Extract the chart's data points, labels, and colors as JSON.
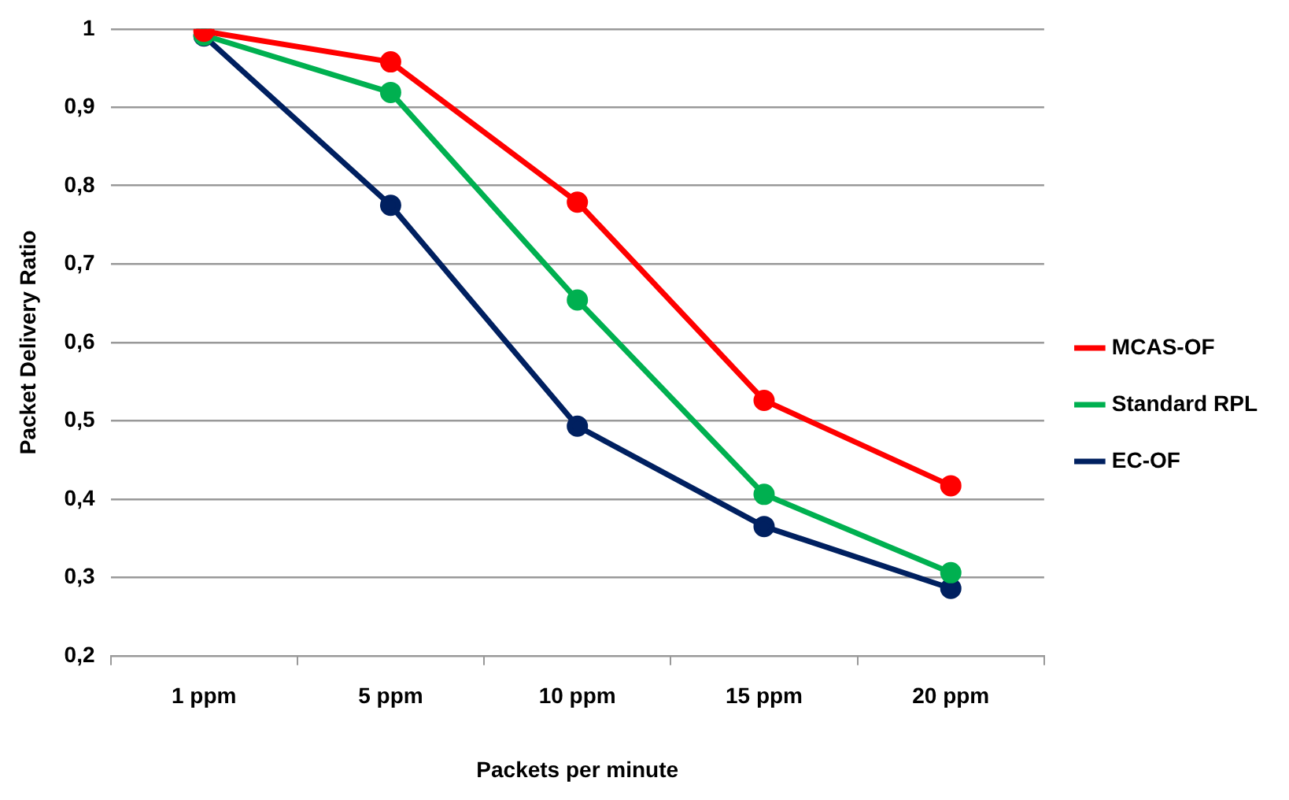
{
  "chart_data": {
    "type": "line",
    "xlabel": "Packets per minute",
    "ylabel": "Packet Delivery Ratio",
    "categories": [
      "1 ppm",
      "5 ppm",
      "10 ppm",
      "15 ppm",
      "20 ppm"
    ],
    "ylim": [
      0.2,
      1
    ],
    "yticks": [
      {
        "value": 0.2,
        "label": "0,2"
      },
      {
        "value": 0.3,
        "label": "0,3"
      },
      {
        "value": 0.4,
        "label": "0,4"
      },
      {
        "value": 0.5,
        "label": "0,5"
      },
      {
        "value": 0.6,
        "label": "0,6"
      },
      {
        "value": 0.7,
        "label": "0,7"
      },
      {
        "value": 0.8,
        "label": "0,8"
      },
      {
        "value": 0.9,
        "label": "0,9"
      },
      {
        "value": 1,
        "label": "1"
      }
    ],
    "grid": "y",
    "legend": "right",
    "marker": "circle",
    "line_style": "solid",
    "series": [
      {
        "name": "MCAS-OF",
        "color": "#ff0000",
        "values": [
          0.997,
          0.958,
          0.779,
          0.526,
          0.417
        ]
      },
      {
        "name": "Standard RPL",
        "color": "#00b050",
        "values": [
          0.992,
          0.919,
          0.654,
          0.406,
          0.306
        ]
      },
      {
        "name": "EC-OF",
        "color": "#002060",
        "values": [
          0.991,
          0.775,
          0.493,
          0.365,
          0.286
        ]
      }
    ]
  }
}
